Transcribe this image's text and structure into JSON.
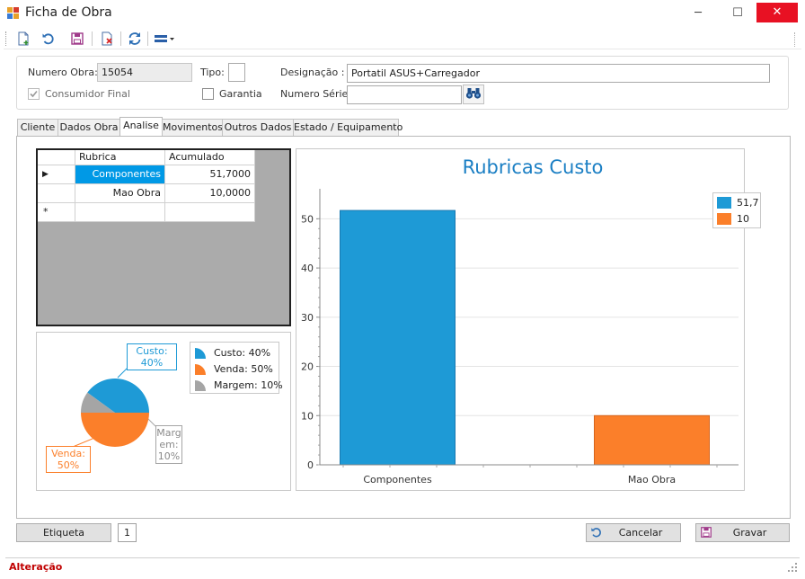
{
  "window": {
    "title": "Ficha de Obra",
    "minimize_glyph": "─",
    "maximize_glyph": "☐",
    "close_glyph": "✕"
  },
  "toolbar": {
    "icons": [
      "new-document-icon",
      "undo-icon",
      "save-icon",
      "delete-document-icon",
      "refresh-icon",
      "layout-dropdown-icon"
    ]
  },
  "header": {
    "numero_obra_label": "Numero Obra:",
    "numero_obra_value": "15054",
    "tipo_label": "Tipo:",
    "tipo_value": "",
    "designacao_label": "Designação :",
    "designacao_value": "Portatil ASUS+Carregador",
    "consumidor_final_label": "Consumidor Final",
    "consumidor_final_checked": true,
    "garantia_label": "Garantia",
    "garantia_checked": false,
    "numero_serie_label": "Numero Série:",
    "numero_serie_value": ""
  },
  "tabs": [
    {
      "label": "Cliente",
      "active": false
    },
    {
      "label": "Dados Obra",
      "active": false
    },
    {
      "label": "Analise",
      "active": true
    },
    {
      "label": "Movimentos",
      "active": false
    },
    {
      "label": "Outros Dados",
      "active": false
    },
    {
      "label": "Estado / Equipamento",
      "active": false
    }
  ],
  "grid": {
    "columns": [
      "Rubrica",
      "Acumulado"
    ],
    "rows": [
      {
        "rubrica": "Componentes",
        "acumulado": "51,7000",
        "selected": true
      },
      {
        "rubrica": "Mao Obra",
        "acumulado": "10,0000",
        "selected": false
      }
    ],
    "new_row_marker": "*",
    "current_row_marker": "▶"
  },
  "pie_chart": {
    "type": "pie",
    "slices": [
      {
        "name": "Custo",
        "value": 40,
        "color": "#1e9ad6",
        "label_line1": "Custo:",
        "label_line2": "40%",
        "legend": "Custo: 40%"
      },
      {
        "name": "Venda",
        "value": 50,
        "color": "#fb7f2a",
        "label_line1": "Venda:",
        "label_line2": "50%",
        "legend": "Venda: 50%"
      },
      {
        "name": "Margem",
        "value": 10,
        "color": "#a5a5a5",
        "label_line1": "Marg",
        "label_line2": "em:",
        "label_line3": "10%",
        "legend": "Margem: 10%"
      }
    ]
  },
  "chart_data": {
    "type": "bar",
    "title": "Rubricas Custo",
    "categories": [
      "Componentes",
      "Mao Obra"
    ],
    "values": [
      51.7,
      10
    ],
    "colors": [
      "#1e9ad6",
      "#fb7f2a"
    ],
    "legend": [
      "51,7",
      "10"
    ],
    "legend_position": "top-right",
    "ylim": [
      0,
      55
    ],
    "yticks": [
      "0",
      "10",
      "20",
      "30",
      "40",
      "50"
    ],
    "grid": true
  },
  "footer": {
    "etiqueta_label": "Etiqueta",
    "etiqueta_count": "1",
    "cancelar_label": "Cancelar",
    "gravar_label": "Gravar"
  },
  "status": {
    "text": "Alteração",
    "color": "#c00000"
  }
}
